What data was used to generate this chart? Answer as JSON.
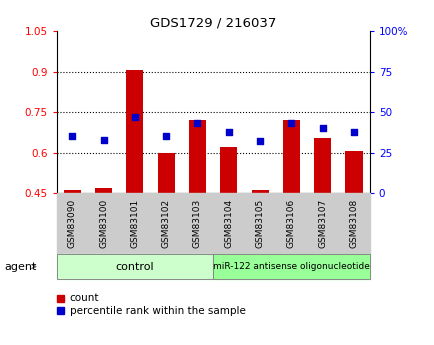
{
  "title": "GDS1729 / 216037",
  "categories": [
    "GSM83090",
    "GSM83100",
    "GSM83101",
    "GSM83102",
    "GSM83103",
    "GSM83104",
    "GSM83105",
    "GSM83106",
    "GSM83107",
    "GSM83108"
  ],
  "bar_values": [
    0.462,
    0.47,
    0.905,
    0.6,
    0.72,
    0.622,
    0.462,
    0.72,
    0.655,
    0.605
  ],
  "scatter_values": [
    35,
    33,
    47,
    35,
    43,
    38,
    32,
    43,
    40,
    38
  ],
  "bar_color": "#cc0000",
  "scatter_color": "#0000cc",
  "bar_bottom": 0.45,
  "ylim_left": [
    0.45,
    1.05
  ],
  "ylim_right": [
    0,
    100
  ],
  "yticks_left": [
    0.45,
    0.6,
    0.75,
    0.9,
    1.05
  ],
  "ytick_labels_left": [
    "0.45",
    "0.6",
    "0.75",
    "0.9",
    "1.05"
  ],
  "yticks_right": [
    0,
    25,
    50,
    75,
    100
  ],
  "ytick_labels_right": [
    "0",
    "25",
    "50",
    "75",
    "100%"
  ],
  "grid_yticks": [
    0.6,
    0.75,
    0.9
  ],
  "n_control": 5,
  "n_treatment": 5,
  "control_label": "control",
  "treatment_label": "miR-122 antisense oligonucleotide",
  "agent_label": "agent",
  "legend_count": "count",
  "legend_pct": "percentile rank within the sample",
  "control_bg": "#ccffcc",
  "treatment_bg": "#99ff99",
  "xtick_bg": "#cccccc",
  "bar_width": 0.55,
  "figwidth": 4.35,
  "figheight": 3.45,
  "dpi": 100
}
